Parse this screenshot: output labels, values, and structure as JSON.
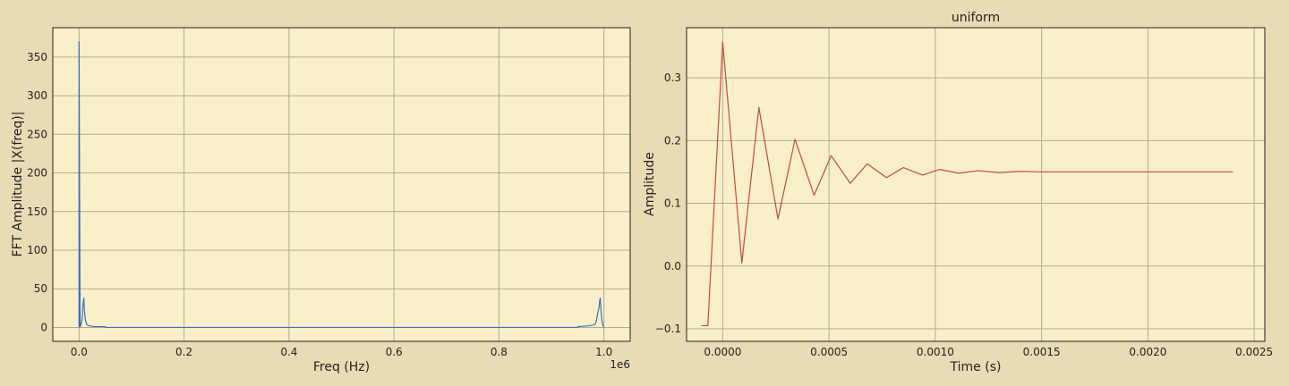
{
  "colors": {
    "figure_bg": "#e9dbb3",
    "plot_bg": "#f9efc8",
    "grid": "#b0ab93",
    "axes_edge": "#222222",
    "fft_line": "#3b6fc4",
    "time_line": "#c84b3e"
  },
  "chart_data": [
    {
      "type": "line",
      "title": "",
      "xlabel": "Freq (Hz)",
      "ylabel": "FFT Amplitude |X(freq)|",
      "x_offset_text": "1e6",
      "xlim": [
        -0.05,
        1.05
      ],
      "ylim": [
        -18,
        388
      ],
      "x_ticks": [
        0.0,
        0.2,
        0.4,
        0.6,
        0.8,
        1.0
      ],
      "x_tick_labels": [
        "0.0",
        "0.2",
        "0.4",
        "0.6",
        "0.8",
        "1.0"
      ],
      "y_ticks": [
        0,
        50,
        100,
        150,
        200,
        250,
        300,
        350
      ],
      "y_tick_labels": [
        "0",
        "50",
        "100",
        "150",
        "200",
        "250",
        "300",
        "350"
      ],
      "grid": true,
      "series": [
        {
          "color": "#3b6fc4",
          "x": [
            0.0,
            0.0,
            0.002,
            0.004,
            0.006,
            0.007,
            0.008,
            0.009,
            0.01,
            0.012,
            0.014,
            0.016,
            0.02,
            0.03,
            0.05,
            0.05,
            0.95,
            0.95,
            0.97,
            0.98,
            0.984,
            0.986,
            0.988,
            0.99,
            0.991,
            0.992,
            0.993,
            0.994,
            0.996,
            0.998,
            1.0
          ],
          "values": [
            0,
            370,
            1,
            4,
            12,
            25,
            33,
            38,
            24,
            10,
            5,
            3,
            2,
            1,
            1,
            0,
            0,
            1,
            2,
            3,
            5,
            10,
            18,
            24,
            28,
            35,
            38,
            25,
            10,
            3,
            0
          ]
        }
      ]
    },
    {
      "type": "line",
      "title": "uniform",
      "xlabel": "Time (s)",
      "ylabel": "Amplitude",
      "xlim": [
        -0.00017,
        0.00255
      ],
      "ylim": [
        -0.12,
        0.38
      ],
      "x_ticks": [
        0.0,
        0.0005,
        0.001,
        0.0015,
        0.002,
        0.0025
      ],
      "x_tick_labels": [
        "0.0000",
        "0.0005",
        "0.0010",
        "0.0015",
        "0.0020",
        "0.0025"
      ],
      "y_ticks": [
        -0.1,
        0.0,
        0.1,
        0.2,
        0.3
      ],
      "y_tick_labels": [
        "−0.1",
        "0.0",
        "0.1",
        "0.2",
        "0.3"
      ],
      "grid": true,
      "series": [
        {
          "color": "#c84b3e",
          "x": [
            -0.0001,
            -8e-05,
            -7e-05,
            0.0,
            9e-05,
            0.00017,
            0.00026,
            0.00034,
            0.00043,
            0.00051,
            0.0006,
            0.00068,
            0.00077,
            0.00085,
            0.00094,
            0.00102,
            0.00111,
            0.0012,
            0.0013,
            0.0014,
            0.0015,
            0.0017,
            0.002,
            0.0024
          ],
          "values": [
            -0.095,
            -0.095,
            -0.095,
            0.357,
            0.005,
            0.253,
            0.075,
            0.202,
            0.113,
            0.176,
            0.132,
            0.163,
            0.141,
            0.157,
            0.145,
            0.154,
            0.148,
            0.152,
            0.149,
            0.151,
            0.15,
            0.15,
            0.15,
            0.15
          ]
        }
      ]
    }
  ]
}
